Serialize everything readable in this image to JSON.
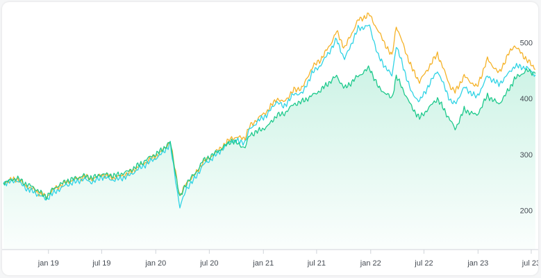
{
  "chart_data": {
    "type": "line",
    "title": "",
    "xlabel": "",
    "ylabel": "",
    "ylim": [
      130,
      560
    ],
    "xlim": [
      "2018-08-01",
      "2023-07-20"
    ],
    "x_ticks": [
      {
        "date": "2019-01-01",
        "label": "jan 19"
      },
      {
        "date": "2019-07-01",
        "label": "jul 19"
      },
      {
        "date": "2020-01-01",
        "label": "jan 20"
      },
      {
        "date": "2020-07-01",
        "label": "jul 20"
      },
      {
        "date": "2021-01-01",
        "label": "jan 21"
      },
      {
        "date": "2021-07-01",
        "label": "jul 21"
      },
      {
        "date": "2022-01-01",
        "label": "jan 22"
      },
      {
        "date": "2022-07-01",
        "label": "jul 22"
      },
      {
        "date": "2023-01-01",
        "label": "jan 23"
      },
      {
        "date": "2023-07-01",
        "label": "jul 23"
      }
    ],
    "y_ticks": [
      200,
      300,
      400,
      500
    ],
    "grid": false,
    "area_under_series": 2,
    "series": [
      {
        "color": "#f5b228",
        "points": [
          [
            "2018-08-01",
            250
          ],
          [
            "2018-09-15",
            257
          ],
          [
            "2018-10-15",
            244
          ],
          [
            "2018-11-15",
            236
          ],
          [
            "2018-12-24",
            224
          ],
          [
            "2019-01-20",
            238
          ],
          [
            "2019-03-01",
            250
          ],
          [
            "2019-05-01",
            260
          ],
          [
            "2019-06-01",
            256
          ],
          [
            "2019-07-01",
            264
          ],
          [
            "2019-08-15",
            258
          ],
          [
            "2019-10-01",
            266
          ],
          [
            "2019-11-15",
            282
          ],
          [
            "2019-12-15",
            292
          ],
          [
            "2020-01-15",
            302
          ],
          [
            "2020-02-19",
            323
          ],
          [
            "2020-03-23",
            225
          ],
          [
            "2020-04-15",
            250
          ],
          [
            "2020-05-15",
            265
          ],
          [
            "2020-06-08",
            285
          ],
          [
            "2020-07-15",
            300
          ],
          [
            "2020-08-31",
            322
          ],
          [
            "2020-09-15",
            330
          ],
          [
            "2020-10-31",
            330
          ],
          [
            "2020-11-15",
            350
          ],
          [
            "2020-12-15",
            365
          ],
          [
            "2021-01-15",
            378
          ],
          [
            "2021-02-15",
            400
          ],
          [
            "2021-03-10",
            393
          ],
          [
            "2021-04-15",
            415
          ],
          [
            "2021-05-15",
            420
          ],
          [
            "2021-06-15",
            455
          ],
          [
            "2021-07-15",
            470
          ],
          [
            "2021-08-15",
            495
          ],
          [
            "2021-09-07",
            520
          ],
          [
            "2021-10-04",
            490
          ],
          [
            "2021-11-19",
            540
          ],
          [
            "2021-12-28",
            550
          ],
          [
            "2022-01-27",
            520
          ],
          [
            "2022-03-14",
            475
          ],
          [
            "2022-03-29",
            530
          ],
          [
            "2022-05-20",
            455
          ],
          [
            "2022-06-16",
            430
          ],
          [
            "2022-08-16",
            480
          ],
          [
            "2022-09-30",
            420
          ],
          [
            "2022-10-15",
            412
          ],
          [
            "2022-11-15",
            440
          ],
          [
            "2022-12-28",
            420
          ],
          [
            "2023-02-02",
            470
          ],
          [
            "2023-03-13",
            445
          ],
          [
            "2023-04-15",
            480
          ],
          [
            "2023-05-05",
            495
          ],
          [
            "2023-06-15",
            470
          ],
          [
            "2023-07-15",
            452
          ]
        ]
      },
      {
        "color": "#2fd3e5",
        "points": [
          [
            "2018-08-01",
            248
          ],
          [
            "2018-09-15",
            254
          ],
          [
            "2018-10-15",
            240
          ],
          [
            "2018-11-15",
            232
          ],
          [
            "2018-12-24",
            220
          ],
          [
            "2019-01-20",
            232
          ],
          [
            "2019-03-01",
            245
          ],
          [
            "2019-05-01",
            256
          ],
          [
            "2019-06-01",
            250
          ],
          [
            "2019-07-01",
            260
          ],
          [
            "2019-08-15",
            254
          ],
          [
            "2019-10-01",
            262
          ],
          [
            "2019-11-15",
            278
          ],
          [
            "2019-12-15",
            288
          ],
          [
            "2020-01-15",
            298
          ],
          [
            "2020-02-19",
            318
          ],
          [
            "2020-03-23",
            205
          ],
          [
            "2020-04-15",
            240
          ],
          [
            "2020-05-15",
            258
          ],
          [
            "2020-06-08",
            280
          ],
          [
            "2020-07-15",
            295
          ],
          [
            "2020-08-31",
            318
          ],
          [
            "2020-09-15",
            325
          ],
          [
            "2020-10-31",
            322
          ],
          [
            "2020-11-15",
            345
          ],
          [
            "2020-12-15",
            360
          ],
          [
            "2021-01-15",
            372
          ],
          [
            "2021-02-15",
            395
          ],
          [
            "2021-03-10",
            385
          ],
          [
            "2021-04-15",
            408
          ],
          [
            "2021-05-15",
            410
          ],
          [
            "2021-06-15",
            445
          ],
          [
            "2021-07-15",
            460
          ],
          [
            "2021-08-15",
            485
          ],
          [
            "2021-09-07",
            505
          ],
          [
            "2021-10-04",
            470
          ],
          [
            "2021-11-19",
            525
          ],
          [
            "2021-12-28",
            530
          ],
          [
            "2022-01-27",
            475
          ],
          [
            "2022-03-14",
            440
          ],
          [
            "2022-03-29",
            495
          ],
          [
            "2022-05-20",
            410
          ],
          [
            "2022-06-16",
            395
          ],
          [
            "2022-08-16",
            450
          ],
          [
            "2022-09-30",
            395
          ],
          [
            "2022-10-15",
            390
          ],
          [
            "2022-11-15",
            420
          ],
          [
            "2022-12-28",
            402
          ],
          [
            "2023-02-02",
            440
          ],
          [
            "2023-03-13",
            425
          ],
          [
            "2023-04-15",
            445
          ],
          [
            "2023-05-05",
            458
          ],
          [
            "2023-06-15",
            455
          ],
          [
            "2023-07-15",
            442
          ]
        ]
      },
      {
        "color": "#1ec98c",
        "points": [
          [
            "2018-08-01",
            249
          ],
          [
            "2018-09-15",
            258
          ],
          [
            "2018-10-15",
            248
          ],
          [
            "2018-11-15",
            240
          ],
          [
            "2018-12-24",
            224
          ],
          [
            "2019-01-20",
            240
          ],
          [
            "2019-03-01",
            252
          ],
          [
            "2019-05-01",
            262
          ],
          [
            "2019-06-01",
            258
          ],
          [
            "2019-07-01",
            265
          ],
          [
            "2019-08-15",
            262
          ],
          [
            "2019-10-01",
            270
          ],
          [
            "2019-11-15",
            285
          ],
          [
            "2019-12-15",
            296
          ],
          [
            "2020-01-15",
            305
          ],
          [
            "2020-02-19",
            322
          ],
          [
            "2020-03-23",
            222
          ],
          [
            "2020-04-15",
            250
          ],
          [
            "2020-05-15",
            266
          ],
          [
            "2020-06-08",
            288
          ],
          [
            "2020-07-15",
            300
          ],
          [
            "2020-08-31",
            318
          ],
          [
            "2020-09-15",
            325
          ],
          [
            "2020-10-31",
            312
          ],
          [
            "2020-11-15",
            335
          ],
          [
            "2020-12-15",
            342
          ],
          [
            "2021-01-15",
            350
          ],
          [
            "2021-02-15",
            370
          ],
          [
            "2021-03-10",
            372
          ],
          [
            "2021-04-15",
            390
          ],
          [
            "2021-05-15",
            395
          ],
          [
            "2021-06-15",
            405
          ],
          [
            "2021-07-15",
            415
          ],
          [
            "2021-08-15",
            430
          ],
          [
            "2021-09-07",
            440
          ],
          [
            "2021-10-04",
            418
          ],
          [
            "2021-11-19",
            440
          ],
          [
            "2021-12-28",
            455
          ],
          [
            "2022-01-27",
            420
          ],
          [
            "2022-03-14",
            400
          ],
          [
            "2022-03-29",
            440
          ],
          [
            "2022-05-20",
            385
          ],
          [
            "2022-06-16",
            365
          ],
          [
            "2022-08-16",
            400
          ],
          [
            "2022-09-30",
            360
          ],
          [
            "2022-10-15",
            345
          ],
          [
            "2022-11-15",
            380
          ],
          [
            "2022-12-28",
            370
          ],
          [
            "2023-02-02",
            405
          ],
          [
            "2023-03-13",
            390
          ],
          [
            "2023-04-15",
            415
          ],
          [
            "2023-05-05",
            435
          ],
          [
            "2023-06-15",
            450
          ],
          [
            "2023-07-15",
            445
          ]
        ]
      }
    ]
  }
}
